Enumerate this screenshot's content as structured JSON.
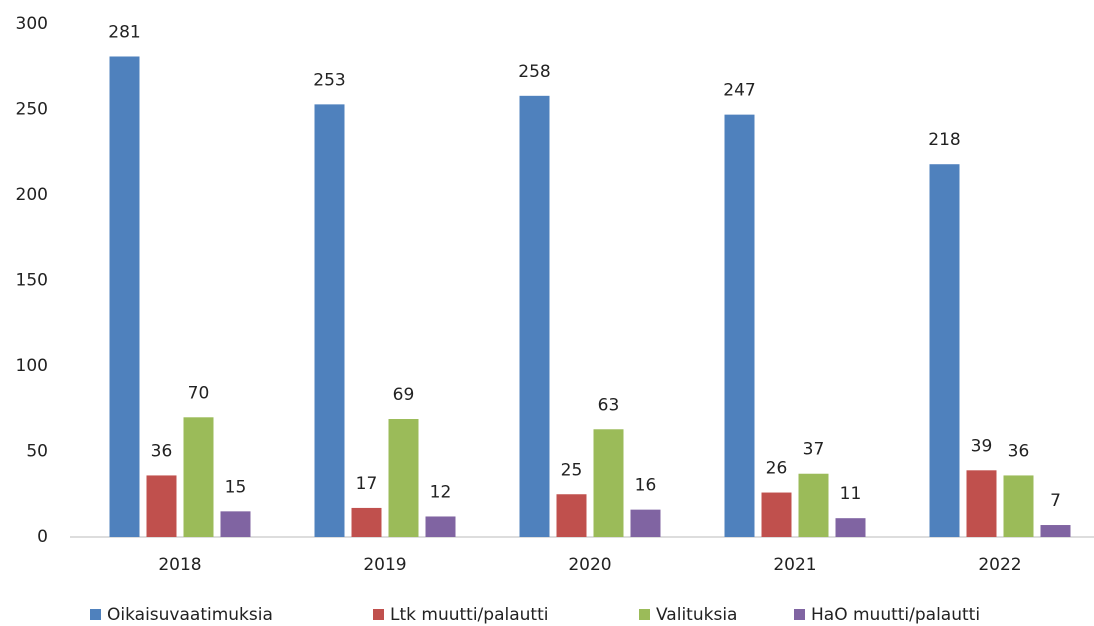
{
  "chart_data": {
    "type": "bar",
    "categories": [
      "2018",
      "2019",
      "2020",
      "2021",
      "2022"
    ],
    "series": [
      {
        "name": "Oikaisuvaatimuksia",
        "color": "#4f81bd",
        "values": [
          281,
          253,
          258,
          247,
          218
        ]
      },
      {
        "name": "Ltk muutti/palautti",
        "color": "#c0504d",
        "values": [
          36,
          17,
          25,
          26,
          39
        ]
      },
      {
        "name": "Valituksia",
        "color": "#9bbb59",
        "values": [
          70,
          69,
          63,
          37,
          36
        ]
      },
      {
        "name": "HaO muutti/palautti",
        "color": "#8064a2",
        "values": [
          15,
          12,
          16,
          11,
          7
        ]
      }
    ],
    "ylim": [
      0,
      300
    ],
    "yticks": [
      0,
      50,
      100,
      150,
      200,
      250,
      300
    ],
    "grid": false,
    "legend": "bottom"
  }
}
